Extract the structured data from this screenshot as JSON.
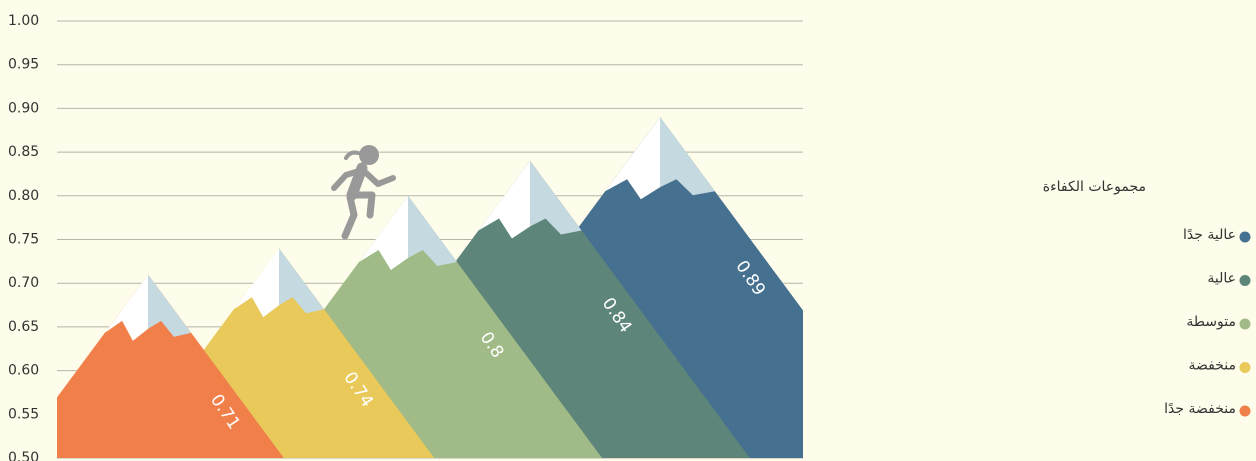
{
  "chart_data": {
    "type": "mountain",
    "categories": [
      "منخفضة جدًا",
      "منخفضة",
      "متوسطة",
      "عالية",
      "عالية جدًا"
    ],
    "values": [
      0.71,
      0.74,
      0.8,
      0.84,
      0.89
    ],
    "colors": [
      "#f07f4a",
      "#e8c95a",
      "#a0bb87",
      "#5d857a",
      "#46708f"
    ],
    "ylim": [
      0.5,
      1.0
    ],
    "yticks": [
      {
        "value": 0.5,
        "label": "0.50"
      },
      0.55,
      {
        "value": 0.6,
        "label": "0.60"
      },
      0.65,
      {
        "value": 0.7,
        "label": "0.70"
      },
      0.75,
      {
        "value": 0.8,
        "label": "0.80"
      },
      0.85,
      {
        "value": 0.9,
        "label": "0.90"
      },
      0.95,
      {
        "value": 1.0,
        "label": "1.00"
      }
    ],
    "grid": true,
    "legend_title": "مجموعات الكفاءة",
    "legend_position": "right"
  }
}
